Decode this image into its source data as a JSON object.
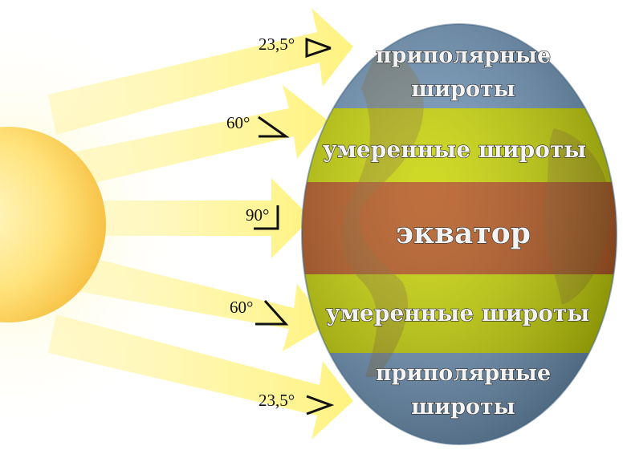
{
  "zones": {
    "top_polar": [
      "приполярные",
      "широты"
    ],
    "top_temperate": "умеренные широты",
    "equator": "экватор",
    "bottom_temperate": "умеренные широты",
    "bottom_polar": [
      "приполярные",
      "широты"
    ]
  },
  "angles": {
    "top_polar": "23,5°",
    "top_temperate": "60°",
    "equator": "90°",
    "bottom_temperate": "60°",
    "bottom_polar": "23,5°"
  },
  "colors": {
    "sun": "#ffd24a",
    "rays": "#fff5a0",
    "polar_band": "#6e94b8",
    "temperate_band": "#c7d400",
    "equator_band": "#b4561c"
  },
  "icons": {
    "sun": "sun-icon",
    "earth": "earth-globe"
  }
}
